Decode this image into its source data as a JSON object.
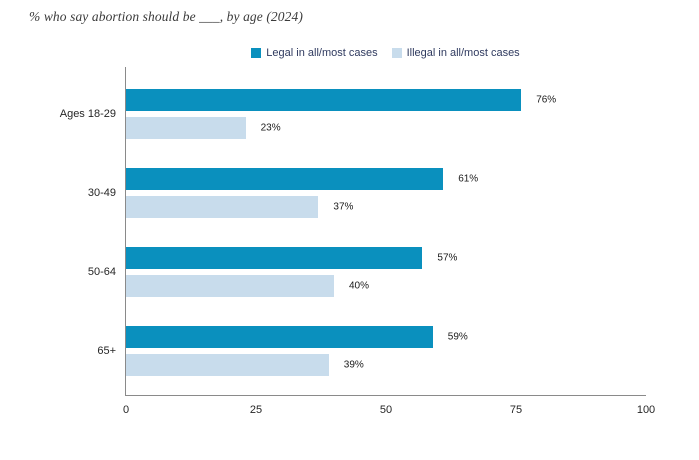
{
  "title": "% who say abortion should be ___, by age (2024)",
  "legend": [
    {
      "label": "Legal in all/most cases",
      "color": "#0a90be"
    },
    {
      "label": "Illegal in all/most cases",
      "color": "#c8dcec"
    }
  ],
  "colors": {
    "legal_series": "#0a90be",
    "illegal_series": "#c8dcec",
    "axis_line": "#8a8a8a",
    "legend_text": "#2f3a5f",
    "title_text": "#3b3b3b"
  },
  "chart_data": {
    "type": "bar",
    "orientation": "horizontal",
    "title": "% who say abortion should be ___, by age (2024)",
    "categories": [
      "Ages 18-29",
      "30-49",
      "50-64",
      "65+"
    ],
    "series": [
      {
        "name": "Legal in all/most cases",
        "color": "#0a90be",
        "values": [
          76,
          61,
          57,
          59
        ]
      },
      {
        "name": "Illegal in all/most cases",
        "color": "#c8dcec",
        "values": [
          23,
          37,
          40,
          39
        ]
      }
    ],
    "value_suffix": "%",
    "xlim": [
      0,
      100
    ],
    "x_ticks": [
      0,
      25,
      50,
      75,
      100
    ],
    "xlabel": "",
    "ylabel": "",
    "grid": false,
    "legend_position": "top"
  }
}
